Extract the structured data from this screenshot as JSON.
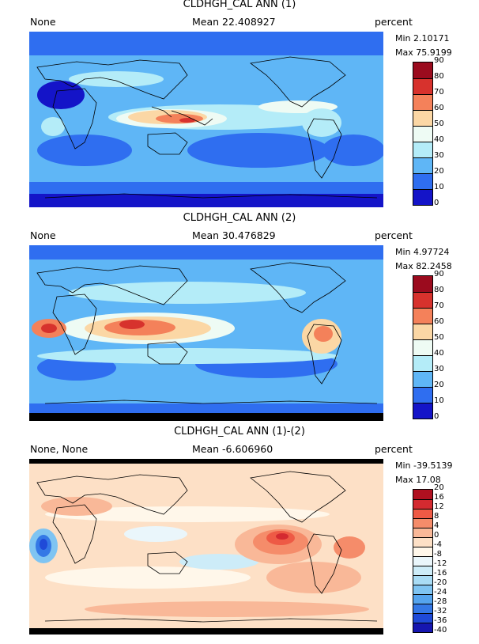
{
  "panels": [
    {
      "title": "CLDHGH_CAL ANN (1)",
      "left_label": "None",
      "mean": "Mean 22.408927",
      "units": "percent",
      "min": "Min 2.10171",
      "max": "Max 75.9199",
      "colorbar": {
        "labels": [
          "90",
          "80",
          "70",
          "60",
          "50",
          "40",
          "30",
          "20",
          "10",
          "0"
        ],
        "colors": [
          "#9b0b1e",
          "#d7322d",
          "#f4815a",
          "#fbd7a5",
          "#eefbf4",
          "#b4ecf8",
          "#5fb6f6",
          "#2f6ef0",
          "#1414c8"
        ]
      }
    },
    {
      "title": "CLDHGH_CAL ANN (2)",
      "left_label": "None",
      "mean": "Mean 30.476829",
      "units": "percent",
      "min": "Min 4.97724",
      "max": "Max 82.2458",
      "colorbar": {
        "labels": [
          "90",
          "80",
          "70",
          "60",
          "50",
          "40",
          "30",
          "20",
          "10",
          "0"
        ],
        "colors": [
          "#9b0b1e",
          "#d7322d",
          "#f4815a",
          "#fbd7a5",
          "#eefbf4",
          "#b4ecf8",
          "#5fb6f6",
          "#2f6ef0",
          "#1414c8"
        ]
      }
    },
    {
      "title": "CLDHGH_CAL ANN (1)-(2)",
      "left_label": "None, None",
      "mean": "Mean -6.606960",
      "units": "percent",
      "min": "Min -39.5139",
      "max": "Max 17.08",
      "colorbar": {
        "labels": [
          "20",
          "16",
          "12",
          "8",
          "4",
          "0",
          "-4",
          "-8",
          "-12",
          "-16",
          "-20",
          "-24",
          "-28",
          "-32",
          "-36",
          "-40"
        ],
        "colors": [
          "#b01020",
          "#d42a30",
          "#ee5a45",
          "#f58c6a",
          "#f9b898",
          "#fde0c6",
          "#fff7ea",
          "#eaf6fb",
          "#cdecf8",
          "#a9dcf5",
          "#7fc4f2",
          "#55a4ee",
          "#3478e6",
          "#1f4ad8",
          "#1616b0"
        ]
      }
    }
  ]
}
